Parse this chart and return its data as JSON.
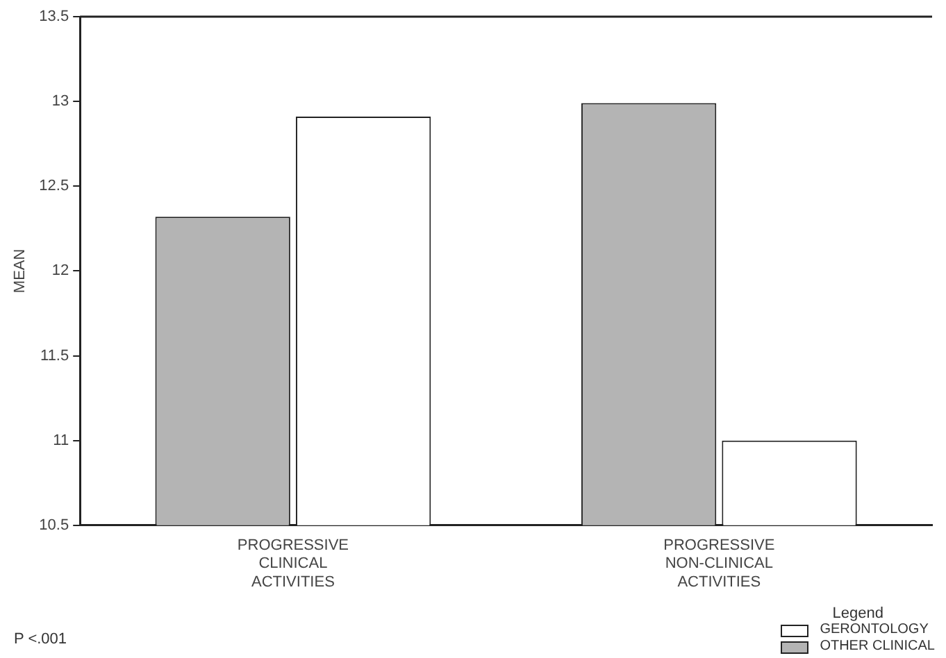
{
  "chart_data": {
    "type": "bar",
    "ylabel": "MEAN",
    "categories": [
      "PROGRESSIVE CLINICAL ACTIVITIES",
      "PROGRESSIVE NON-CLINICAL ACTIVITIES"
    ],
    "series": [
      {
        "name": "OTHER CLINICAL",
        "color": "#b4b4b4",
        "values": [
          12.32,
          12.99
        ]
      },
      {
        "name": "GERONTOLOGY",
        "color": "#ffffff",
        "values": [
          12.91,
          11.0
        ]
      }
    ],
    "ylim": [
      10.5,
      13.5
    ],
    "yticks": [
      10.5,
      11,
      11.5,
      12,
      12.5,
      13,
      13.5
    ],
    "grid": false,
    "legend": "bottom right",
    "legend_title": "Legend",
    "annotations": [
      "P <.001"
    ]
  }
}
